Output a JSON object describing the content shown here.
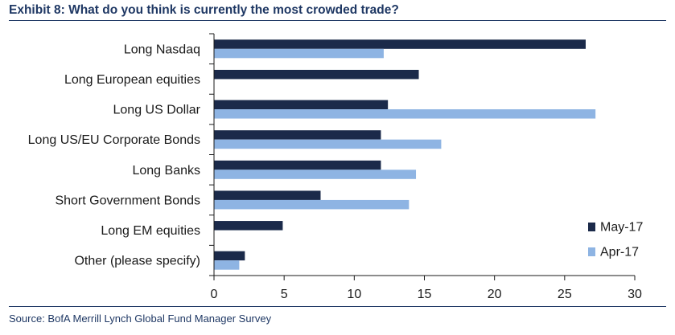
{
  "title": "Exhibit 8: What do you think is currently the most crowded trade?",
  "source": "Source: BofA Merrill Lynch Global Fund Manager Survey",
  "chart_data": {
    "type": "bar",
    "orientation": "horizontal",
    "categories": [
      "Long Nasdaq",
      "Long European equities",
      "Long US Dollar",
      "Long US/EU Corporate Bonds",
      "Long Banks",
      "Short Government Bonds",
      "Long EM equities",
      "Other (please specify)"
    ],
    "series": [
      {
        "name": "May-17",
        "color": "#1b2a4a",
        "values": [
          26.5,
          14.6,
          12.4,
          11.9,
          11.9,
          7.6,
          4.9,
          2.2
        ]
      },
      {
        "name": "Apr-17",
        "color": "#8eb4e3",
        "values": [
          12.1,
          null,
          27.2,
          16.2,
          14.4,
          13.9,
          null,
          1.8
        ]
      }
    ],
    "xlim": [
      0,
      30
    ],
    "xticks": [
      "0",
      "5",
      "10",
      "15",
      "20",
      "25",
      "30"
    ],
    "grid": false,
    "legend_position": "bottom-right"
  }
}
